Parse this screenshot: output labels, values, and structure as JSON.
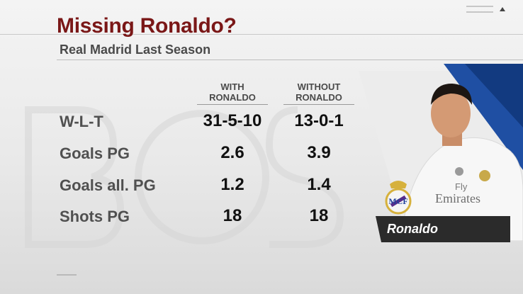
{
  "header": {
    "title": "Missing Ronaldo?",
    "subtitle": "Real Madrid Last Season"
  },
  "columns": [
    {
      "line1": "WITH",
      "line2": "RONALDO"
    },
    {
      "line1": "WITHOUT",
      "line2": "RONALDO"
    }
  ],
  "rows": [
    {
      "label": "W-L-T",
      "with": "31-5-10",
      "without": "13-0-1"
    },
    {
      "label": "Goals PG",
      "with": "2.6",
      "without": "3.9"
    },
    {
      "label": "Goals all. PG",
      "with": "1.2",
      "without": "1.4"
    },
    {
      "label": "Shots PG",
      "with": "18",
      "without": "18"
    }
  ],
  "player": {
    "name": "Ronaldo",
    "sponsor_line1": "Fly",
    "sponsor_line2": "Emirates"
  },
  "colors": {
    "title": "#7a1717",
    "panel_blue": "#1f4fa3",
    "tag": "#2b2b2b"
  }
}
